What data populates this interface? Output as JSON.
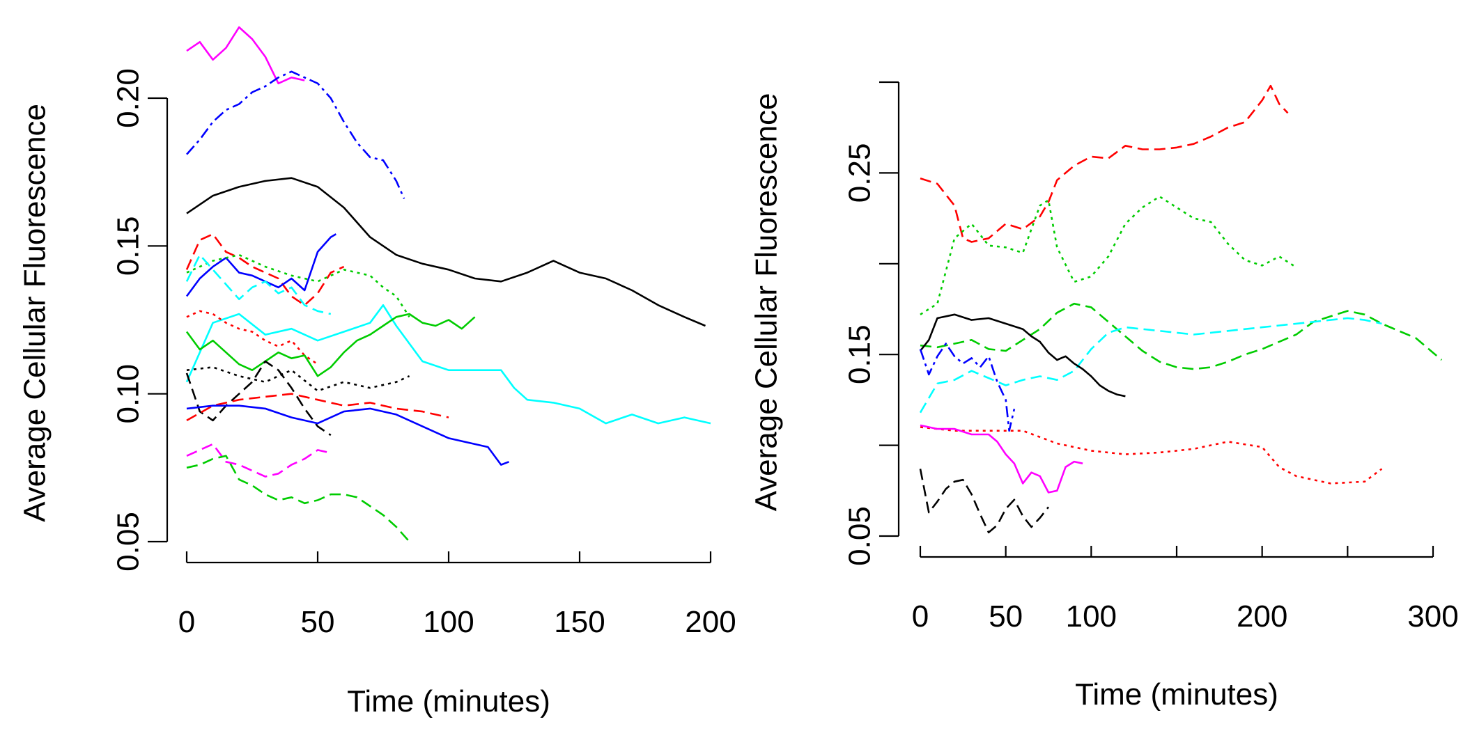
{
  "chart_data": [
    {
      "type": "line",
      "title": "",
      "xlabel": "Time (minutes)",
      "ylabel": "Average Cellular Fluorescence",
      "xlim": [
        0,
        200
      ],
      "ylim": [
        0.05,
        0.2
      ],
      "xticks": [
        0,
        50,
        100,
        150,
        200
      ],
      "xtick_labels": [
        "0",
        "50",
        "100",
        "150",
        "200"
      ],
      "yticks": [
        0.05,
        0.1,
        0.15,
        0.2
      ],
      "ytick_labels": [
        "0.05",
        "0.10",
        "0.15",
        "0.20"
      ],
      "grid": false,
      "legend": "none",
      "series": [
        {
          "color": "#ff00ff",
          "dash": "solid",
          "x": [
            0,
            5,
            10,
            15,
            20,
            25,
            30,
            35,
            40,
            45
          ],
          "y": [
            0.216,
            0.219,
            0.213,
            0.217,
            0.224,
            0.22,
            0.214,
            0.205,
            0.207,
            0.206
          ]
        },
        {
          "color": "#0000ff",
          "dash": "dashdot",
          "x": [
            0,
            5,
            10,
            15,
            20,
            25,
            30,
            35,
            40,
            45,
            50,
            55,
            60,
            65,
            70,
            75,
            80,
            83
          ],
          "y": [
            0.181,
            0.186,
            0.192,
            0.196,
            0.198,
            0.202,
            0.204,
            0.207,
            0.209,
            0.207,
            0.205,
            0.2,
            0.192,
            0.185,
            0.18,
            0.179,
            0.172,
            0.166
          ]
        },
        {
          "color": "#000000",
          "dash": "solid",
          "x": [
            0,
            10,
            20,
            30,
            40,
            50,
            60,
            70,
            80,
            90,
            100,
            110,
            120,
            130,
            140,
            150,
            160,
            170,
            180,
            190,
            198
          ],
          "y": [
            0.161,
            0.167,
            0.17,
            0.172,
            0.173,
            0.17,
            0.163,
            0.153,
            0.147,
            0.144,
            0.142,
            0.139,
            0.138,
            0.141,
            0.145,
            0.141,
            0.139,
            0.135,
            0.13,
            0.126,
            0.123
          ]
        },
        {
          "color": "#ff0000",
          "dash": "dashed",
          "x": [
            0,
            5,
            10,
            15,
            20,
            25,
            30,
            35,
            40,
            45,
            50,
            55,
            60
          ],
          "y": [
            0.142,
            0.152,
            0.154,
            0.148,
            0.146,
            0.143,
            0.141,
            0.139,
            0.133,
            0.13,
            0.134,
            0.141,
            0.143
          ]
        },
        {
          "color": "#0000ff",
          "dash": "solid",
          "x": [
            0,
            5,
            10,
            15,
            20,
            25,
            30,
            35,
            40,
            45,
            50,
            55,
            57
          ],
          "y": [
            0.133,
            0.139,
            0.143,
            0.146,
            0.141,
            0.14,
            0.138,
            0.136,
            0.139,
            0.135,
            0.148,
            0.153,
            0.154
          ]
        },
        {
          "color": "#00cc00",
          "dash": "dotted",
          "x": [
            0,
            10,
            20,
            30,
            40,
            50,
            60,
            70,
            75,
            80,
            85
          ],
          "y": [
            0.141,
            0.145,
            0.147,
            0.143,
            0.14,
            0.138,
            0.142,
            0.14,
            0.136,
            0.133,
            0.126
          ]
        },
        {
          "color": "#00ffff",
          "dash": "dashed",
          "x": [
            0,
            5,
            10,
            15,
            20,
            25,
            30,
            35,
            40,
            45,
            50,
            55
          ],
          "y": [
            0.138,
            0.147,
            0.142,
            0.137,
            0.132,
            0.136,
            0.138,
            0.134,
            0.136,
            0.13,
            0.128,
            0.127
          ]
        },
        {
          "color": "#00ffff",
          "dash": "solid",
          "x": [
            0,
            10,
            20,
            30,
            40,
            50,
            60,
            70,
            75,
            80,
            90,
            100,
            110,
            120,
            125,
            130,
            140,
            150,
            160,
            170,
            180,
            190,
            200
          ],
          "y": [
            0.104,
            0.124,
            0.127,
            0.12,
            0.122,
            0.118,
            0.121,
            0.124,
            0.13,
            0.123,
            0.111,
            0.108,
            0.108,
            0.108,
            0.102,
            0.098,
            0.097,
            0.095,
            0.09,
            0.093,
            0.09,
            0.092,
            0.09
          ]
        },
        {
          "color": "#ff0000",
          "dash": "dotted",
          "x": [
            0,
            5,
            10,
            15,
            20,
            25,
            30,
            35,
            40,
            45,
            50
          ],
          "y": [
            0.126,
            0.128,
            0.127,
            0.124,
            0.122,
            0.121,
            0.118,
            0.116,
            0.118,
            0.113,
            0.11
          ]
        },
        {
          "color": "#00cc00",
          "dash": "solid",
          "x": [
            0,
            5,
            10,
            15,
            20,
            25,
            30,
            35,
            40,
            45,
            50,
            55,
            60,
            65,
            70,
            75,
            80,
            85,
            90,
            95,
            100,
            105,
            110
          ],
          "y": [
            0.121,
            0.115,
            0.118,
            0.114,
            0.11,
            0.108,
            0.111,
            0.114,
            0.112,
            0.113,
            0.106,
            0.109,
            0.114,
            0.118,
            0.12,
            0.123,
            0.126,
            0.127,
            0.124,
            0.123,
            0.125,
            0.122,
            0.126
          ]
        },
        {
          "color": "#000000",
          "dash": "dotted",
          "x": [
            0,
            10,
            20,
            30,
            40,
            50,
            60,
            70,
            80,
            85
          ],
          "y": [
            0.108,
            0.109,
            0.106,
            0.104,
            0.108,
            0.101,
            0.104,
            0.102,
            0.104,
            0.106
          ]
        },
        {
          "color": "#000000",
          "dash": "dashed",
          "x": [
            0,
            5,
            10,
            15,
            20,
            25,
            30,
            35,
            40,
            45,
            50,
            55
          ],
          "y": [
            0.107,
            0.094,
            0.091,
            0.096,
            0.1,
            0.104,
            0.111,
            0.108,
            0.102,
            0.095,
            0.089,
            0.086
          ]
        },
        {
          "color": "#ff0000",
          "dash": "dashed",
          "x": [
            0,
            10,
            20,
            30,
            40,
            50,
            60,
            70,
            80,
            90,
            100
          ],
          "y": [
            0.091,
            0.096,
            0.098,
            0.099,
            0.1,
            0.098,
            0.096,
            0.097,
            0.095,
            0.094,
            0.092
          ]
        },
        {
          "color": "#0000ff",
          "dash": "solid",
          "x": [
            0,
            10,
            20,
            30,
            40,
            50,
            60,
            70,
            80,
            90,
            100,
            110,
            115,
            120,
            123
          ],
          "y": [
            0.095,
            0.096,
            0.096,
            0.095,
            0.092,
            0.09,
            0.094,
            0.095,
            0.093,
            0.089,
            0.085,
            0.083,
            0.082,
            0.076,
            0.077
          ]
        },
        {
          "color": "#ff00ff",
          "dash": "dashed",
          "x": [
            0,
            5,
            10,
            15,
            20,
            25,
            30,
            35,
            40,
            45,
            50,
            55
          ],
          "y": [
            0.079,
            0.081,
            0.083,
            0.077,
            0.076,
            0.074,
            0.072,
            0.073,
            0.076,
            0.078,
            0.081,
            0.08
          ]
        },
        {
          "color": "#00cc00",
          "dash": "dashed",
          "x": [
            0,
            5,
            10,
            15,
            20,
            25,
            30,
            35,
            40,
            45,
            50,
            55,
            60,
            65,
            70,
            75,
            80,
            85
          ],
          "y": [
            0.075,
            0.076,
            0.078,
            0.079,
            0.071,
            0.069,
            0.066,
            0.064,
            0.065,
            0.063,
            0.064,
            0.066,
            0.066,
            0.065,
            0.062,
            0.059,
            0.055,
            0.05
          ]
        }
      ]
    },
    {
      "type": "line",
      "title": "",
      "xlabel": "Time (minutes)",
      "ylabel": "Average Cellular Fluorescence",
      "xlim": [
        0,
        300
      ],
      "ylim": [
        0.05,
        0.3
      ],
      "xticks": [
        0,
        50,
        100,
        150,
        200,
        250,
        300
      ],
      "xtick_labels": [
        "0",
        "50",
        "100",
        "",
        "200",
        "",
        "300"
      ],
      "yticks": [
        0.05,
        0.1,
        0.15,
        0.2,
        0.25,
        0.3
      ],
      "ytick_labels": [
        "0.05",
        "",
        "0.15",
        "",
        "0.25",
        ""
      ],
      "grid": false,
      "legend": "none",
      "series": [
        {
          "color": "#ff0000",
          "dash": "dashed",
          "x": [
            0,
            10,
            20,
            25,
            30,
            40,
            50,
            60,
            70,
            75,
            80,
            90,
            100,
            110,
            120,
            130,
            140,
            150,
            160,
            170,
            180,
            190,
            200,
            205,
            210,
            215
          ],
          "y": [
            0.247,
            0.244,
            0.232,
            0.214,
            0.212,
            0.214,
            0.222,
            0.219,
            0.226,
            0.234,
            0.246,
            0.254,
            0.259,
            0.258,
            0.265,
            0.263,
            0.263,
            0.264,
            0.266,
            0.27,
            0.275,
            0.278,
            0.29,
            0.298,
            0.288,
            0.283
          ]
        },
        {
          "color": "#00cc00",
          "dash": "dotted",
          "x": [
            0,
            10,
            20,
            30,
            40,
            50,
            60,
            70,
            75,
            80,
            90,
            100,
            110,
            120,
            130,
            140,
            150,
            160,
            170,
            180,
            190,
            200,
            210,
            220
          ],
          "y": [
            0.172,
            0.178,
            0.214,
            0.222,
            0.21,
            0.209,
            0.206,
            0.232,
            0.235,
            0.209,
            0.19,
            0.193,
            0.204,
            0.222,
            0.231,
            0.237,
            0.231,
            0.225,
            0.223,
            0.211,
            0.202,
            0.199,
            0.204,
            0.198
          ]
        },
        {
          "color": "#00cc00",
          "dash": "dashed",
          "x": [
            0,
            10,
            20,
            30,
            40,
            50,
            60,
            70,
            80,
            90,
            100,
            110,
            120,
            130,
            140,
            150,
            160,
            170,
            180,
            190,
            200,
            210,
            220,
            230,
            240,
            250,
            260,
            270,
            280,
            290,
            300,
            305
          ],
          "y": [
            0.155,
            0.154,
            0.156,
            0.158,
            0.153,
            0.152,
            0.158,
            0.164,
            0.173,
            0.178,
            0.176,
            0.168,
            0.16,
            0.152,
            0.146,
            0.143,
            0.142,
            0.143,
            0.146,
            0.15,
            0.153,
            0.157,
            0.161,
            0.168,
            0.171,
            0.174,
            0.172,
            0.167,
            0.163,
            0.159,
            0.151,
            0.147
          ]
        },
        {
          "color": "#00ffff",
          "dash": "dashed",
          "x": [
            0,
            10,
            20,
            30,
            40,
            50,
            60,
            70,
            80,
            90,
            100,
            110,
            120,
            130,
            140,
            150,
            160,
            170,
            180,
            190,
            200,
            210,
            220,
            230,
            240,
            250,
            260,
            270
          ],
          "y": [
            0.118,
            0.134,
            0.136,
            0.141,
            0.137,
            0.133,
            0.136,
            0.138,
            0.136,
            0.141,
            0.153,
            0.162,
            0.165,
            0.164,
            0.163,
            0.162,
            0.161,
            0.162,
            0.163,
            0.164,
            0.165,
            0.166,
            0.167,
            0.168,
            0.169,
            0.17,
            0.169,
            0.167
          ]
        },
        {
          "color": "#000000",
          "dash": "solid",
          "x": [
            0,
            5,
            10,
            20,
            30,
            40,
            50,
            60,
            65,
            70,
            75,
            80,
            85,
            90,
            95,
            100,
            105,
            110,
            115,
            120
          ],
          "y": [
            0.152,
            0.158,
            0.17,
            0.172,
            0.169,
            0.17,
            0.167,
            0.164,
            0.16,
            0.157,
            0.151,
            0.147,
            0.149,
            0.145,
            0.142,
            0.138,
            0.133,
            0.13,
            0.128,
            0.127
          ]
        },
        {
          "color": "#0000ff",
          "dash": "dashdot",
          "x": [
            0,
            5,
            10,
            15,
            20,
            25,
            30,
            35,
            40,
            45,
            50,
            52,
            55
          ],
          "y": [
            0.153,
            0.139,
            0.149,
            0.156,
            0.149,
            0.145,
            0.148,
            0.143,
            0.149,
            0.135,
            0.125,
            0.108,
            0.12
          ]
        },
        {
          "color": "#ff0000",
          "dash": "dotted",
          "x": [
            0,
            20,
            40,
            60,
            80,
            100,
            120,
            140,
            160,
            180,
            200,
            210,
            220,
            240,
            260,
            270
          ],
          "y": [
            0.11,
            0.108,
            0.108,
            0.108,
            0.101,
            0.097,
            0.095,
            0.096,
            0.098,
            0.102,
            0.099,
            0.088,
            0.083,
            0.079,
            0.08,
            0.087
          ]
        },
        {
          "color": "#ff00ff",
          "dash": "solid",
          "x": [
            0,
            10,
            20,
            30,
            40,
            45,
            50,
            55,
            60,
            65,
            70,
            75,
            80,
            85,
            90,
            95
          ],
          "y": [
            0.111,
            0.109,
            0.109,
            0.106,
            0.106,
            0.102,
            0.095,
            0.09,
            0.079,
            0.085,
            0.083,
            0.074,
            0.075,
            0.088,
            0.091,
            0.09
          ]
        },
        {
          "color": "#000000",
          "dash": "dashed",
          "x": [
            0,
            5,
            10,
            15,
            20,
            25,
            30,
            35,
            40,
            45,
            50,
            55,
            60,
            65,
            70,
            75
          ],
          "y": [
            0.087,
            0.063,
            0.069,
            0.076,
            0.08,
            0.081,
            0.073,
            0.062,
            0.052,
            0.056,
            0.065,
            0.07,
            0.061,
            0.055,
            0.06,
            0.066
          ]
        }
      ]
    }
  ]
}
